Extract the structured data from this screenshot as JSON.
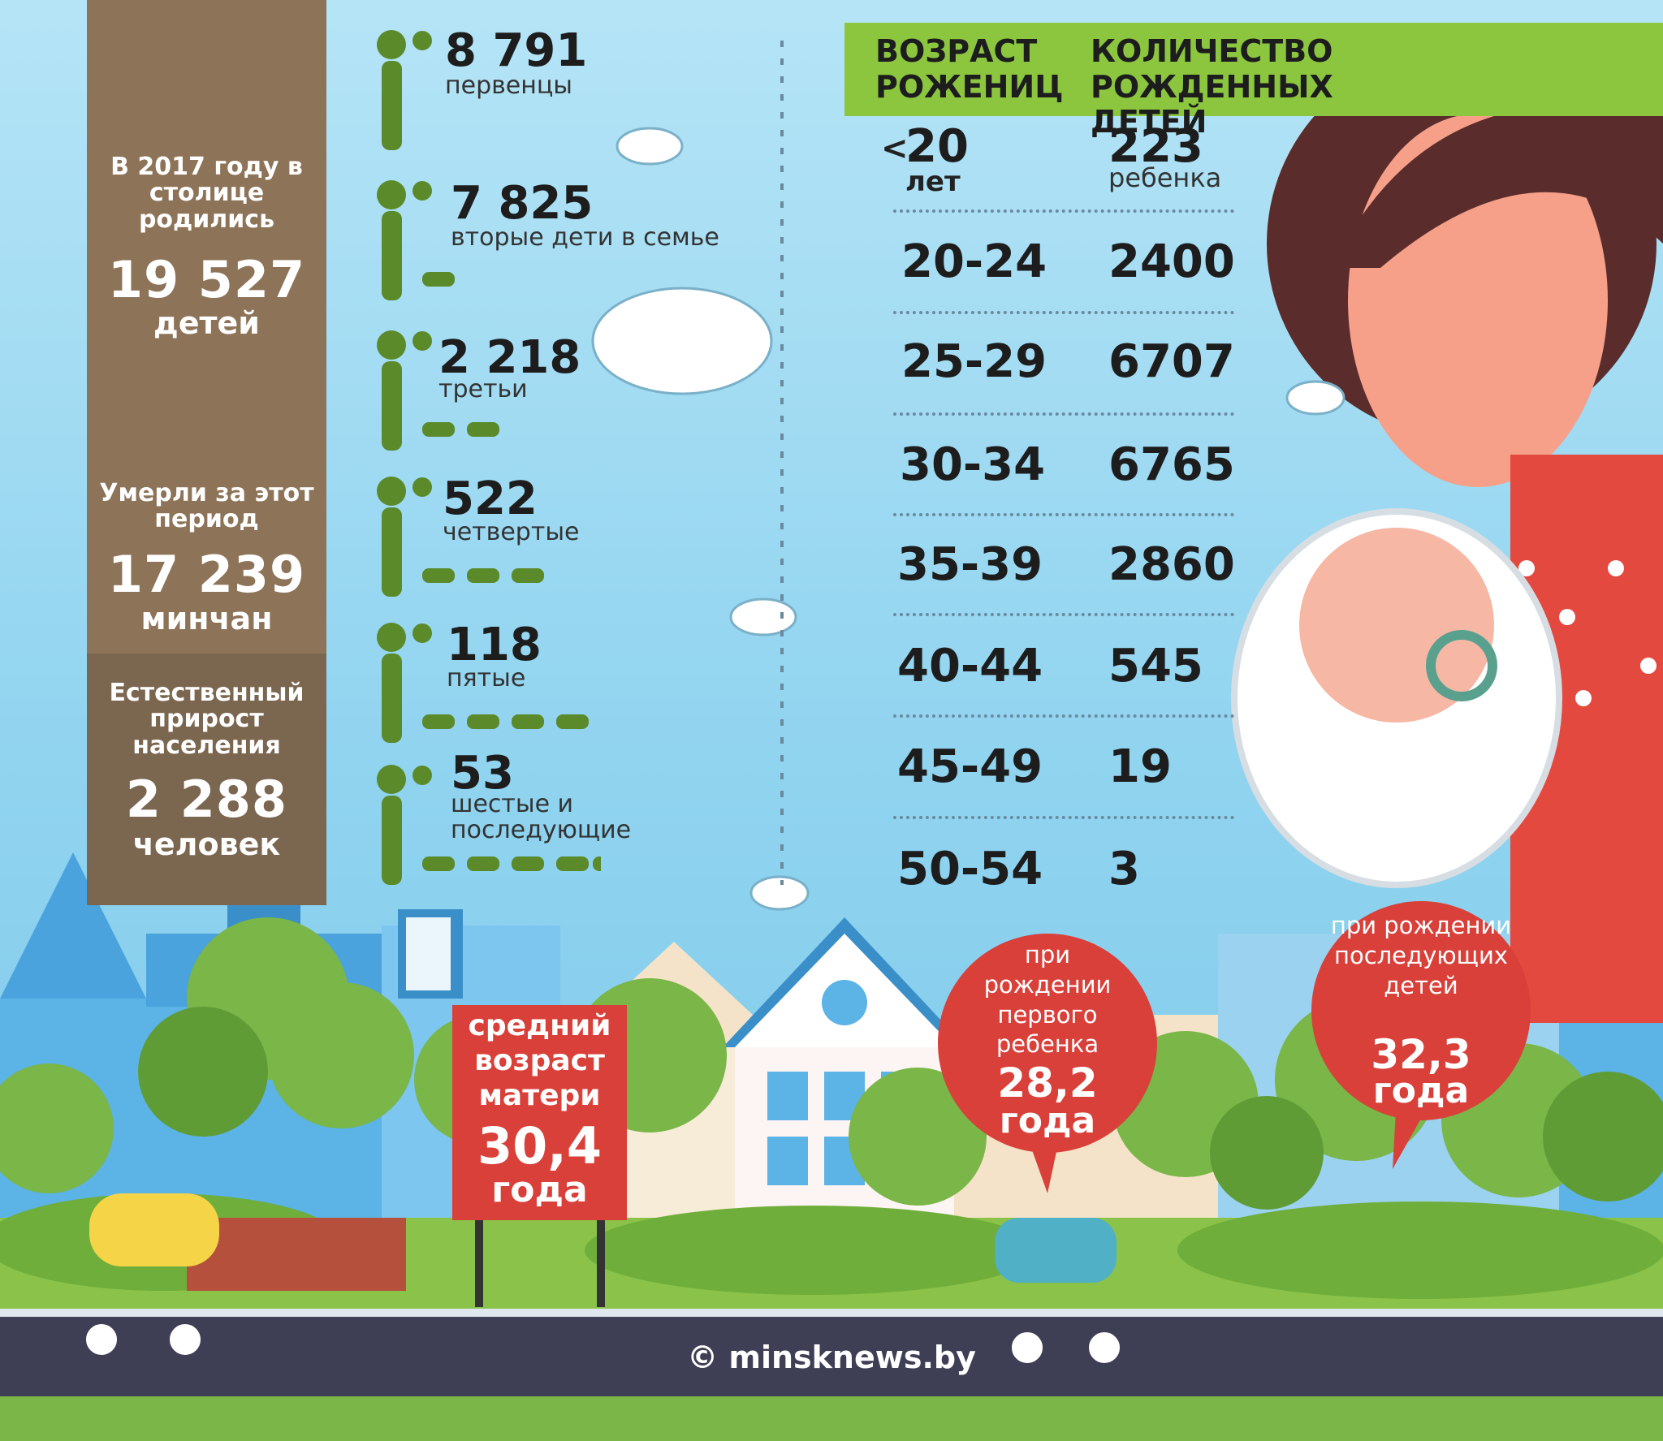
{
  "summary": {
    "born_intro": "В 2017 году в столице родились",
    "born_value": "19 527",
    "born_unit": "детей",
    "died_intro": "Умерли за этот период",
    "died_value": "17 239",
    "died_unit": "минчан",
    "growth_intro": "Естественный прирост населения",
    "growth_value": "2 288",
    "growth_unit": "человек"
  },
  "birth_order": [
    {
      "value": "8 791",
      "label": "первенцы"
    },
    {
      "value": "7 825",
      "label": "вторые дети в семье"
    },
    {
      "value": "2 218",
      "label": "третьи"
    },
    {
      "value": "522",
      "label": "четвертые"
    },
    {
      "value": "118",
      "label": "пятые"
    },
    {
      "value": "53",
      "label": "шестые и последующие"
    }
  ],
  "table": {
    "col_age": "ВОЗРАСТ РОЖЕНИЦ",
    "col_count": "КОЛИЧЕСТВО РОЖДЕННЫХ ДЕТЕЙ",
    "rows": [
      {
        "age_prefix": "<",
        "age": "20",
        "age_unit": "лет",
        "count": "223",
        "count_unit": "ребенка"
      },
      {
        "age": "20-24",
        "count": "2400"
      },
      {
        "age": "25-29",
        "count": "6707"
      },
      {
        "age": "30-34",
        "count": "6765"
      },
      {
        "age": "35-39",
        "count": "2860"
      },
      {
        "age": "40-44",
        "count": "545"
      },
      {
        "age": "45-49",
        "count": "19"
      },
      {
        "age": "50-54",
        "count": "3"
      }
    ]
  },
  "mother_age": {
    "sign_label": "средний возраст матери",
    "sign_value": "30,4",
    "sign_unit": "года",
    "first_label": "при рождении первого ребенка",
    "first_value": "28,2",
    "first_unit": "года",
    "next_label": "при рождении последующих детей",
    "next_value": "32,3",
    "next_unit": "года"
  },
  "credit": "© minsknews.by",
  "colors": {
    "sky": "#8fd3ef",
    "brown_panel": "#8d7358",
    "green_header": "#8cc63f",
    "red": "#d9403a",
    "pictogram_green": "#5b8a2a"
  }
}
